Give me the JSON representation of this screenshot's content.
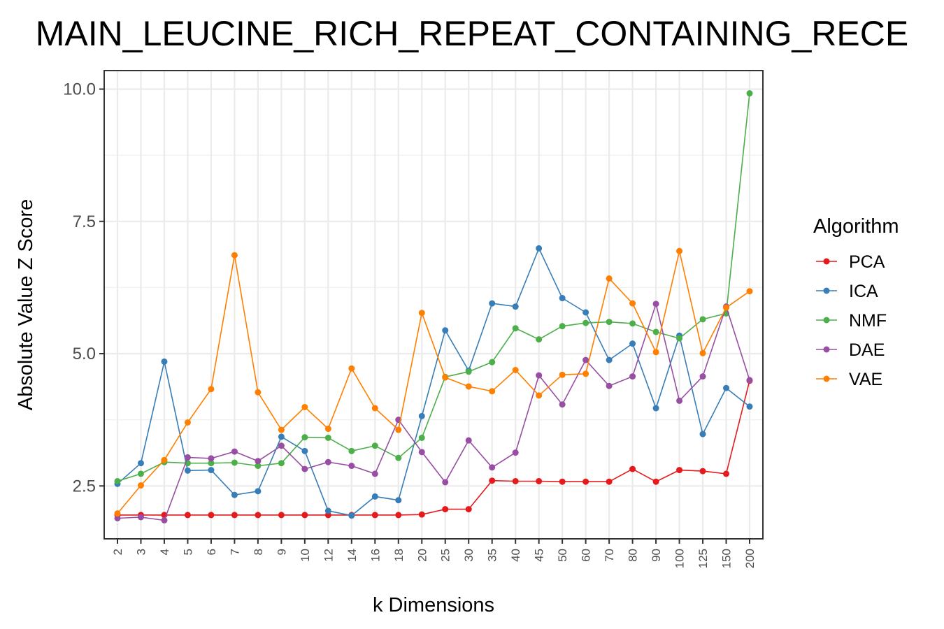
{
  "chart_data": {
    "type": "line",
    "title": "MAIN_LEUCINE_RICH_REPEAT_CONTAINING_RECE",
    "xlabel": "k Dimensions",
    "ylabel": "Absolute Value Z Score",
    "categories": [
      "2",
      "3",
      "4",
      "5",
      "6",
      "7",
      "8",
      "9",
      "10",
      "12",
      "14",
      "16",
      "18",
      "20",
      "25",
      "30",
      "35",
      "40",
      "45",
      "50",
      "60",
      "70",
      "80",
      "90",
      "100",
      "125",
      "150",
      "200"
    ],
    "yticks": [
      "2.5",
      "5.0",
      "7.5",
      "10.0"
    ],
    "ylim": [
      1.5,
      10.35
    ],
    "grid": true,
    "legend": {
      "title": "Algorithm",
      "position": "right"
    },
    "series": [
      {
        "name": "PCA",
        "color": "#e41a1c",
        "values": [
          1.95,
          1.95,
          1.95,
          1.95,
          1.95,
          1.95,
          1.95,
          1.95,
          1.95,
          1.95,
          1.95,
          1.95,
          1.95,
          1.96,
          2.06,
          2.06,
          2.6,
          2.59,
          2.59,
          2.58,
          2.58,
          2.58,
          2.82,
          2.58,
          2.8,
          2.78,
          2.73,
          4.49
        ]
      },
      {
        "name": "ICA",
        "color": "#377eb8",
        "values": [
          2.54,
          2.93,
          4.85,
          2.79,
          2.8,
          2.33,
          2.4,
          3.43,
          3.16,
          2.03,
          1.94,
          2.3,
          2.23,
          3.82,
          5.44,
          4.68,
          5.95,
          5.89,
          6.99,
          6.05,
          5.78,
          4.88,
          5.19,
          3.97,
          5.34,
          3.48,
          4.35,
          4.0
        ]
      },
      {
        "name": "NMF",
        "color": "#4daf4a",
        "values": [
          2.59,
          2.73,
          2.95,
          2.93,
          2.93,
          2.94,
          2.88,
          2.93,
          3.42,
          3.41,
          3.16,
          3.26,
          3.03,
          3.41,
          4.56,
          4.66,
          4.84,
          5.48,
          5.27,
          5.52,
          5.58,
          5.6,
          5.57,
          5.41,
          5.29,
          5.65,
          5.76,
          9.92
        ]
      },
      {
        "name": "DAE",
        "color": "#984ea3",
        "values": [
          1.89,
          1.91,
          1.85,
          3.04,
          3.02,
          3.15,
          2.97,
          3.26,
          2.82,
          2.95,
          2.88,
          2.73,
          3.75,
          3.14,
          2.57,
          3.36,
          2.85,
          3.13,
          4.59,
          4.04,
          4.88,
          4.39,
          4.57,
          5.94,
          4.11,
          4.57,
          5.89,
          4.5
        ]
      },
      {
        "name": "VAE",
        "color": "#ff7f00",
        "values": [
          1.98,
          2.51,
          2.99,
          3.7,
          4.33,
          6.86,
          4.27,
          3.56,
          3.99,
          3.58,
          4.72,
          3.97,
          3.56,
          5.77,
          4.55,
          4.38,
          4.29,
          4.69,
          4.21,
          4.6,
          4.62,
          6.42,
          5.95,
          5.03,
          6.94,
          5.01,
          5.87,
          6.18
        ]
      }
    ]
  }
}
